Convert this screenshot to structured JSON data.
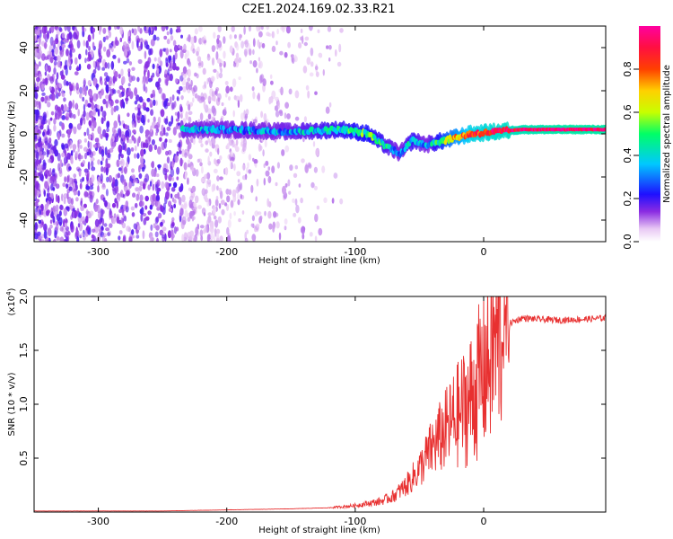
{
  "title": "C2E1.2024.169.02.33.R21",
  "chart_data": [
    {
      "type": "heatmap",
      "name": "spectrogram",
      "xlabel": "Height of straight line (km)",
      "ylabel": "Frequency (Hz)",
      "xlim": [
        -350,
        95
      ],
      "ylim": [
        -50,
        50
      ],
      "xticks": [
        -300,
        -200,
        -100,
        0
      ],
      "yticks": [
        -40,
        -20,
        0,
        20,
        40
      ],
      "colorbar": {
        "label": "Normalized spectral amplitude",
        "range": [
          0.0,
          1.0
        ],
        "ticks": [
          "0.0",
          "0.2",
          "0.4",
          "0.6",
          "0.8"
        ],
        "tick_values": [
          0.0,
          0.2,
          0.4,
          0.6,
          0.8
        ],
        "colors": [
          "#ffffff",
          "#e8c8f4",
          "#8a2be2",
          "#1e10ff",
          "#00c8ff",
          "#00ff66",
          "#c8ff00",
          "#ffd000",
          "#ff4000",
          "#ff1040",
          "#ff00a0"
        ]
      },
      "ridge": {
        "x": [
          -235,
          -200,
          -150,
          -110,
          -90,
          -75,
          -65,
          -55,
          -45,
          -30,
          -10,
          10,
          30,
          60,
          95
        ],
        "y": [
          2,
          2,
          1,
          2,
          0,
          -6,
          -9,
          -3,
          -5,
          -3,
          0,
          1,
          2,
          2,
          2
        ],
        "amplitude": [
          0.35,
          0.3,
          0.35,
          0.45,
          0.5,
          0.4,
          0.3,
          0.45,
          0.3,
          0.6,
          0.85,
          0.9,
          0.95,
          0.98,
          0.98
        ]
      }
    },
    {
      "type": "line",
      "name": "snr",
      "xlabel": "Height of straight line (km)",
      "ylabel": "SNR (10 * v/v)",
      "y_multiplier": "(x10",
      "y_multiplier_exp": "4",
      "y_multiplier_close": ")",
      "xlim": [
        -350,
        95
      ],
      "ylim": [
        0,
        2.0
      ],
      "xticks": [
        -300,
        -200,
        -100,
        0
      ],
      "yticks": [
        0.5,
        1.0,
        1.5,
        2.0
      ],
      "ytick_labels": [
        "0.5",
        "1.0",
        "1.5",
        "2.0"
      ],
      "color": "#e83030",
      "series": [
        {
          "name": "SNR",
          "x": [
            -350,
            -300,
            -250,
            -200,
            -150,
            -120,
            -100,
            -80,
            -70,
            -60,
            -50,
            -40,
            -30,
            -20,
            -10,
            0,
            10,
            20,
            30,
            40,
            60,
            80,
            95
          ],
          "y": [
            0.01,
            0.01,
            0.01,
            0.02,
            0.03,
            0.04,
            0.06,
            0.1,
            0.15,
            0.25,
            0.4,
            0.6,
            0.75,
            0.9,
            1.05,
            1.3,
            1.6,
            1.75,
            1.8,
            1.79,
            1.78,
            1.79,
            1.8
          ]
        }
      ]
    }
  ]
}
